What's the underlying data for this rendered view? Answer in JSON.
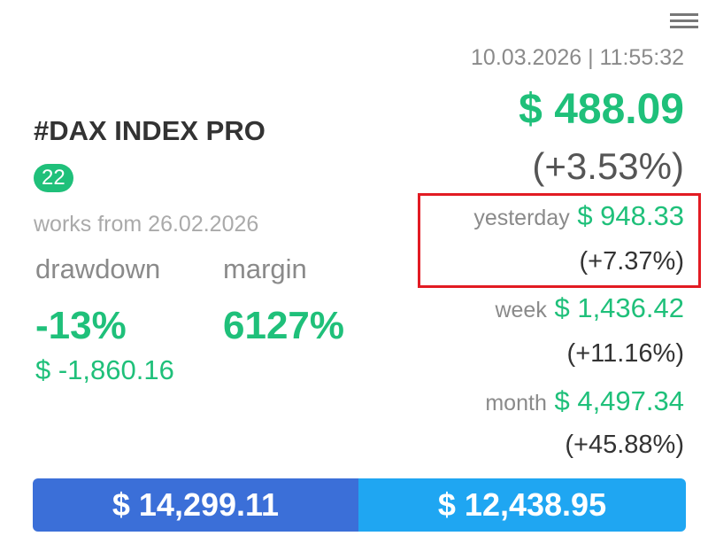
{
  "header": {
    "title": "#DAX INDEX PRO",
    "badge": "22",
    "works_from": "works from 26.02.2026",
    "timestamp": "10.03.2026 | 11:55:32"
  },
  "current": {
    "amount": "$ 488.09",
    "change": "(+3.53%)"
  },
  "stats": [
    {
      "label": "drawdown",
      "value": "-13%",
      "amount": "$ -1,860.16"
    },
    {
      "label": "margin",
      "value": "6127%"
    }
  ],
  "periods": [
    {
      "label": "yesterday",
      "amount": "$ 948.33",
      "change": "(+7.37%)"
    },
    {
      "label": "week",
      "amount": "$ 1,436.42",
      "change": "(+11.16%)"
    },
    {
      "label": "month",
      "amount": "$ 4,497.34",
      "change": "(+45.88%)"
    }
  ],
  "footer": {
    "left": "$ 14,299.11",
    "right": "$ 12,438.95"
  }
}
